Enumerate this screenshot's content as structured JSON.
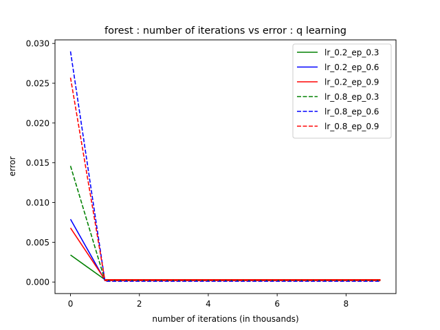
{
  "chart_data": {
    "type": "line",
    "title": "forest : number of iterations vs error : q learning",
    "xlabel": "number of iterations (in thousands)",
    "ylabel": "error",
    "xlim": [
      -0.45,
      9.45
    ],
    "ylim": [
      -0.00145,
      0.03045
    ],
    "x_ticks": [
      0,
      2,
      4,
      6,
      8
    ],
    "x_tick_labels": [
      "0",
      "2",
      "4",
      "6",
      "8"
    ],
    "y_ticks": [
      0.0,
      0.005,
      0.01,
      0.015,
      0.02,
      0.025,
      0.03
    ],
    "y_tick_labels": [
      "0.000",
      "0.005",
      "0.010",
      "0.015",
      "0.020",
      "0.025",
      "0.030"
    ],
    "grid": false,
    "legend_position": "top-right",
    "x": [
      0,
      1,
      2,
      3,
      4,
      5,
      6,
      7,
      8,
      9
    ],
    "series": [
      {
        "name": "lr_0.2_ep_0.3",
        "color": "#008000",
        "style": "solid",
        "values": [
          0.0034,
          0.0003,
          0.0003,
          0.0003,
          0.0003,
          0.0003,
          0.0003,
          0.0003,
          0.0003,
          0.0003
        ]
      },
      {
        "name": "lr_0.2_ep_0.6",
        "color": "#0000ff",
        "style": "solid",
        "values": [
          0.0079,
          0.0002,
          0.0002,
          0.0002,
          0.0002,
          0.0002,
          0.0002,
          0.0002,
          0.0002,
          0.0002
        ]
      },
      {
        "name": "lr_0.2_ep_0.9",
        "color": "#ff0000",
        "style": "solid",
        "values": [
          0.0068,
          0.0003,
          0.0003,
          0.0003,
          0.0003,
          0.0003,
          0.0003,
          0.0003,
          0.0003,
          0.0003
        ]
      },
      {
        "name": "lr_0.8_ep_0.3",
        "color": "#008000",
        "style": "dashed",
        "values": [
          0.0146,
          0.0002,
          0.0002,
          0.0002,
          0.0002,
          0.0002,
          0.0002,
          0.0002,
          0.0002,
          0.0002
        ]
      },
      {
        "name": "lr_0.8_ep_0.6",
        "color": "#0000ff",
        "style": "dashed",
        "values": [
          0.029,
          0.0001,
          0.0001,
          0.0001,
          0.0001,
          0.0001,
          0.0001,
          0.0001,
          0.0001,
          0.0001
        ]
      },
      {
        "name": "lr_0.8_ep_0.9",
        "color": "#ff0000",
        "style": "dashed",
        "values": [
          0.0257,
          0.0002,
          0.0002,
          0.0002,
          0.0002,
          0.0002,
          0.0002,
          0.0002,
          0.0002,
          0.0002
        ]
      }
    ]
  }
}
